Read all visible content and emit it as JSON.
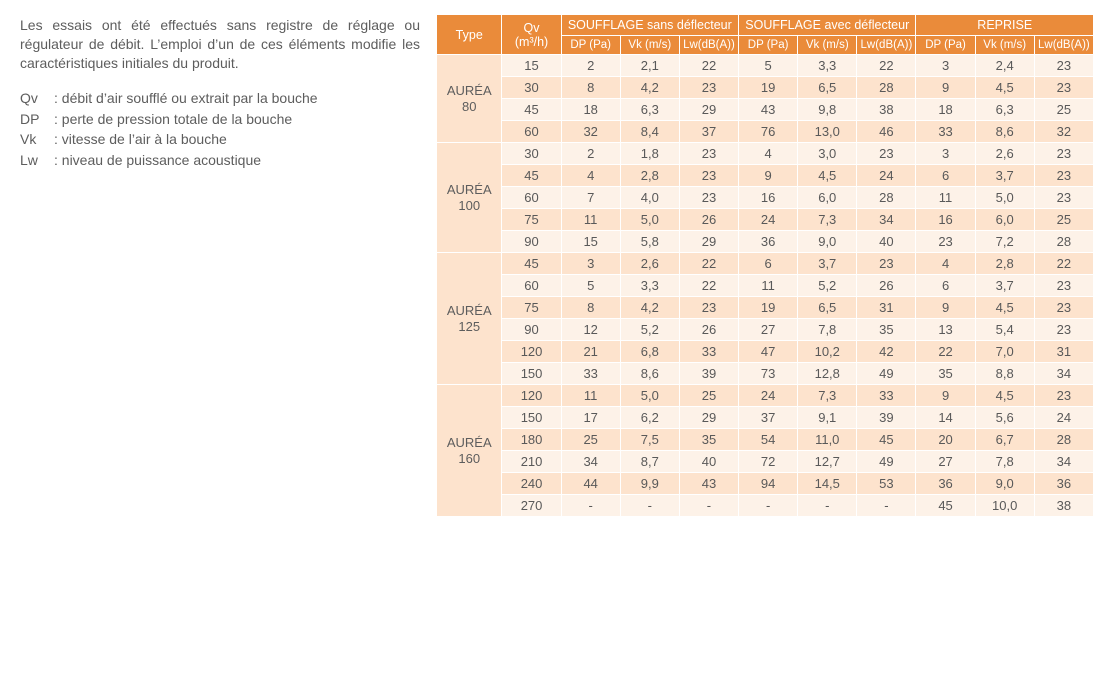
{
  "colors": {
    "header_bg": "#ea8b3a",
    "header_fg": "#ffffff",
    "row_light": "#fdf2e8",
    "row_dark": "#fde3cd",
    "text": "#5d5d5d",
    "page_bg": "#ffffff"
  },
  "left": {
    "intro": "Les essais ont été effectués sans registre de réglage ou régulateur de débit. L’emploi d’un de ces éléments modifie les caractéristiques initiales du produit.",
    "definitions": [
      {
        "sym": "Qv",
        "desc": ": débit d’air soufflé ou extrait par la bouche"
      },
      {
        "sym": "DP",
        "desc": ": perte de pression totale de la bouche"
      },
      {
        "sym": "Vk",
        "desc": ": vitesse de l’air à la bouche"
      },
      {
        "sym": "Lw",
        "desc": ": niveau de puissance acoustique"
      }
    ]
  },
  "table": {
    "header": {
      "type": "Type",
      "qv_html": "Qv<br>(m³/h)",
      "groups": [
        {
          "title": "SOUFFLAGE sans déflecteur",
          "cols": [
            "DP (Pa)",
            "Vk (m/s)",
            "Lw(dB(A))"
          ]
        },
        {
          "title": "SOUFFLAGE avec déflecteur",
          "cols": [
            "DP (Pa)",
            "Vk (m/s)",
            "Lw(dB(A))"
          ]
        },
        {
          "title": "REPRISE",
          "cols": [
            "DP (Pa)",
            "Vk (m/s)",
            "Lw(dB(A))"
          ]
        }
      ]
    },
    "groups": [
      {
        "type_html": "AURÉA<br>80",
        "rows": [
          {
            "qv": "15",
            "v": [
              "2",
              "2,1",
              "22",
              "5",
              "3,3",
              "22",
              "3",
              "2,4",
              "23"
            ]
          },
          {
            "qv": "30",
            "v": [
              "8",
              "4,2",
              "23",
              "19",
              "6,5",
              "28",
              "9",
              "4,5",
              "23"
            ]
          },
          {
            "qv": "45",
            "v": [
              "18",
              "6,3",
              "29",
              "43",
              "9,8",
              "38",
              "18",
              "6,3",
              "25"
            ]
          },
          {
            "qv": "60",
            "v": [
              "32",
              "8,4",
              "37",
              "76",
              "13,0",
              "46",
              "33",
              "8,6",
              "32"
            ]
          }
        ]
      },
      {
        "type_html": "AURÉA<br>100",
        "rows": [
          {
            "qv": "30",
            "v": [
              "2",
              "1,8",
              "23",
              "4",
              "3,0",
              "23",
              "3",
              "2,6",
              "23"
            ]
          },
          {
            "qv": "45",
            "v": [
              "4",
              "2,8",
              "23",
              "9",
              "4,5",
              "24",
              "6",
              "3,7",
              "23"
            ]
          },
          {
            "qv": "60",
            "v": [
              "7",
              "4,0",
              "23",
              "16",
              "6,0",
              "28",
              "11",
              "5,0",
              "23"
            ]
          },
          {
            "qv": "75",
            "v": [
              "11",
              "5,0",
              "26",
              "24",
              "7,3",
              "34",
              "16",
              "6,0",
              "25"
            ]
          },
          {
            "qv": "90",
            "v": [
              "15",
              "5,8",
              "29",
              "36",
              "9,0",
              "40",
              "23",
              "7,2",
              "28"
            ]
          }
        ]
      },
      {
        "type_html": "AURÉA<br>125",
        "rows": [
          {
            "qv": "45",
            "v": [
              "3",
              "2,6",
              "22",
              "6",
              "3,7",
              "23",
              "4",
              "2,8",
              "22"
            ]
          },
          {
            "qv": "60",
            "v": [
              "5",
              "3,3",
              "22",
              "11",
              "5,2",
              "26",
              "6",
              "3,7",
              "23"
            ]
          },
          {
            "qv": "75",
            "v": [
              "8",
              "4,2",
              "23",
              "19",
              "6,5",
              "31",
              "9",
              "4,5",
              "23"
            ]
          },
          {
            "qv": "90",
            "v": [
              "12",
              "5,2",
              "26",
              "27",
              "7,8",
              "35",
              "13",
              "5,4",
              "23"
            ]
          },
          {
            "qv": "120",
            "v": [
              "21",
              "6,8",
              "33",
              "47",
              "10,2",
              "42",
              "22",
              "7,0",
              "31"
            ]
          },
          {
            "qv": "150",
            "v": [
              "33",
              "8,6",
              "39",
              "73",
              "12,8",
              "49",
              "35",
              "8,8",
              "34"
            ]
          }
        ]
      },
      {
        "type_html": "AURÉA<br>160",
        "rows": [
          {
            "qv": "120",
            "v": [
              "11",
              "5,0",
              "25",
              "24",
              "7,3",
              "33",
              "9",
              "4,5",
              "23"
            ]
          },
          {
            "qv": "150",
            "v": [
              "17",
              "6,2",
              "29",
              "37",
              "9,1",
              "39",
              "14",
              "5,6",
              "24"
            ]
          },
          {
            "qv": "180",
            "v": [
              "25",
              "7,5",
              "35",
              "54",
              "11,0",
              "45",
              "20",
              "6,7",
              "28"
            ]
          },
          {
            "qv": "210",
            "v": [
              "34",
              "8,7",
              "40",
              "72",
              "12,7",
              "49",
              "27",
              "7,8",
              "34"
            ]
          },
          {
            "qv": "240",
            "v": [
              "44",
              "9,9",
              "43",
              "94",
              "14,5",
              "53",
              "36",
              "9,0",
              "36"
            ]
          },
          {
            "qv": "270",
            "v": [
              "-",
              "-",
              "-",
              "-",
              "-",
              "-",
              "45",
              "10,0",
              "38"
            ]
          }
        ]
      }
    ]
  }
}
